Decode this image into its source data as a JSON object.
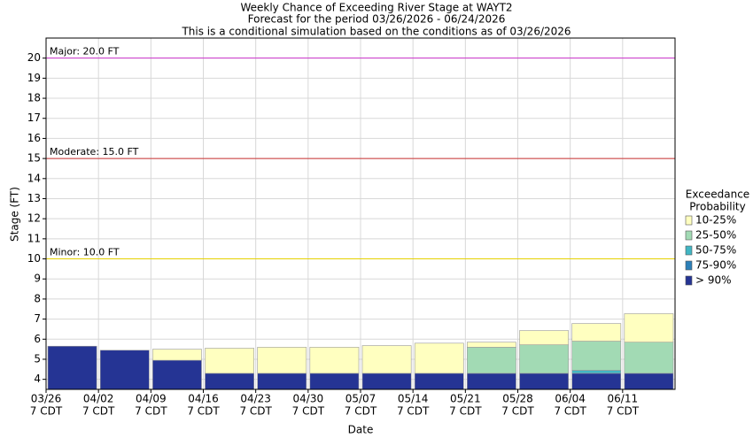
{
  "chart_data": {
    "type": "exceedance-bar",
    "title": [
      "Weekly Chance of Exceeding River Stage at WAYT2",
      "Forecast for the period 03/26/2026 - 06/24/2026",
      "This is a conditional simulation based on the conditions as of 03/26/2026"
    ],
    "y_label": "Stage (FT)",
    "x_label": "Date",
    "categories": [
      "03/26",
      "04/02",
      "04/09",
      "04/16",
      "04/23",
      "04/30",
      "05/07",
      "05/14",
      "05/21",
      "05/28",
      "06/04",
      "06/11"
    ],
    "category_time": "7 CDT",
    "legend_title": [
      "Exceedance",
      "Probability"
    ],
    "series": [
      {
        "name": "10-25%",
        "color": "#ffffc0",
        "values": [
          5.65,
          5.45,
          5.5,
          5.55,
          5.6,
          5.6,
          5.68,
          5.8,
          5.85,
          6.43,
          6.78,
          7.27
        ]
      },
      {
        "name": "25-50%",
        "color": "#a2dab4",
        "values": [
          5.65,
          5.45,
          4.95,
          4.3,
          4.3,
          4.3,
          4.3,
          4.3,
          5.6,
          5.72,
          5.9,
          5.85
        ]
      },
      {
        "name": "50-75%",
        "color": "#41b6c4",
        "values": [
          5.65,
          5.45,
          4.95,
          4.3,
          4.3,
          4.3,
          4.3,
          4.3,
          4.3,
          4.3,
          4.45,
          4.3
        ]
      },
      {
        "name": "75-90%",
        "color": "#2c7fb8",
        "values": [
          5.65,
          5.45,
          4.95,
          4.3,
          4.3,
          4.3,
          4.3,
          4.3,
          4.3,
          4.3,
          4.3,
          4.3
        ]
      },
      {
        "name": "> 90%",
        "color": "#253494",
        "values": [
          5.65,
          5.45,
          4.95,
          4.3,
          4.3,
          4.3,
          4.3,
          4.3,
          4.3,
          4.3,
          4.3,
          4.3
        ]
      }
    ],
    "thresholds": [
      {
        "label": "Major: 20.0 FT",
        "value": 20,
        "color": "#cc33cc"
      },
      {
        "label": "Moderate: 15.0 FT",
        "value": 15,
        "color": "#cc3333"
      },
      {
        "label": "Minor: 10.0 FT",
        "value": 10,
        "color": "#e6d200"
      }
    ],
    "ylim": [
      3.5,
      21
    ],
    "yticks": [
      4,
      5,
      6,
      7,
      8,
      9,
      10,
      11,
      12,
      13,
      14,
      15,
      16,
      17,
      18,
      19,
      20
    ],
    "grid": true
  }
}
